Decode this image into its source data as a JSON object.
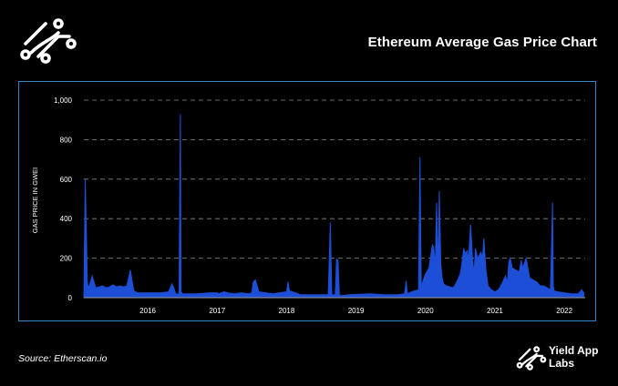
{
  "header": {
    "title": "Ethereum Average Gas Price Chart"
  },
  "footer": {
    "source": "Source: Etherscan.io",
    "brand_line1": "Yield App",
    "brand_line2": "Labs"
  },
  "colors": {
    "background": "#000000",
    "frame": "#2f86c8",
    "series": "#1d4fd6",
    "grid": "#8a8a8a",
    "text": "#ffffff"
  },
  "chart_data": {
    "type": "area",
    "title": "Ethereum Average Gas Price Chart",
    "ylabel": "GAS PRICE IN GWEI",
    "xlabel": "",
    "ylim": [
      0,
      1000
    ],
    "xlim": [
      2015.58,
      2022.8
    ],
    "yticks": [
      0,
      200,
      400,
      600,
      800,
      1000
    ],
    "ytick_labels": [
      "0",
      "200",
      "400",
      "600",
      "800",
      "1,000"
    ],
    "xticks": [
      2016,
      2017,
      2018,
      2019,
      2020,
      2021,
      2022
    ],
    "xtick_labels": [
      "2016",
      "2017",
      "2018",
      "2019",
      "2020",
      "2021",
      "2022"
    ],
    "grid": "horizontal dashed",
    "legend": "none",
    "series": [
      {
        "x": [
          2015.58,
          2015.6,
          2015.62,
          2015.63,
          2015.64,
          2015.66,
          2015.7,
          2015.75,
          2015.8,
          2015.85,
          2015.9,
          2015.95,
          2016.0,
          2016.05,
          2016.1,
          2016.15,
          2016.2,
          2016.25,
          2016.28,
          2016.3,
          2016.35,
          2016.5,
          2016.7,
          2016.8,
          2016.85,
          2016.88,
          2016.9,
          2016.95,
          2016.97,
          2016.98,
          2016.99,
          2017.0,
          2017.2,
          2017.4,
          2017.5,
          2017.52,
          2017.6,
          2017.65,
          2017.75,
          2017.85,
          2017.95,
          2018.0,
          2018.02,
          2018.05,
          2018.1,
          2018.3,
          2018.5,
          2018.52,
          2018.54,
          2018.7,
          2019.0,
          2019.1,
          2019.13,
          2019.15,
          2019.2,
          2019.22,
          2019.24,
          2019.26,
          2019.28,
          2019.4,
          2019.7,
          2019.9,
          2020.0,
          2020.1,
          2020.2,
          2020.22,
          2020.24,
          2020.3,
          2020.4,
          2020.42,
          2020.44,
          2020.46,
          2020.5,
          2020.55,
          2020.6,
          2020.62,
          2020.64,
          2020.66,
          2020.68,
          2020.7,
          2020.72,
          2020.74,
          2020.76,
          2020.8,
          2020.9,
          2020.95,
          2021.0,
          2021.02,
          2021.05,
          2021.08,
          2021.1,
          2021.12,
          2021.15,
          2021.18,
          2021.2,
          2021.22,
          2021.25,
          2021.3,
          2021.32,
          2021.34,
          2021.37,
          2021.4,
          2021.45,
          2021.5,
          2021.55,
          2021.6,
          2021.65,
          2021.68,
          2021.7,
          2021.72,
          2021.75,
          2021.8,
          2021.85,
          2021.88,
          2021.9,
          2021.95,
          2022.0,
          2022.05,
          2022.1,
          2022.15,
          2022.2,
          2022.25,
          2022.3,
          2022.33,
          2022.34,
          2022.35,
          2022.4,
          2022.5,
          2022.6,
          2022.7,
          2022.75,
          2022.78
        ],
        "y": [
          0,
          600,
          270,
          80,
          55,
          60,
          110,
          50,
          55,
          60,
          50,
          55,
          65,
          55,
          60,
          55,
          60,
          140,
          75,
          35,
          25,
          25,
          25,
          30,
          70,
          45,
          20,
          20,
          930,
          30,
          25,
          20,
          20,
          25,
          25,
          20,
          30,
          25,
          20,
          25,
          20,
          25,
          80,
          90,
          30,
          20,
          30,
          80,
          35,
          15,
          15,
          15,
          380,
          15,
          15,
          195,
          190,
          15,
          10,
          15,
          20,
          15,
          15,
          15,
          20,
          85,
          20,
          30,
          40,
          710,
          50,
          80,
          120,
          150,
          270,
          250,
          160,
          480,
          140,
          540,
          170,
          100,
          70,
          60,
          50,
          80,
          120,
          160,
          250,
          220,
          240,
          190,
          370,
          180,
          130,
          250,
          200,
          230,
          200,
          300,
          140,
          60,
          40,
          30,
          40,
          70,
          110,
          80,
          180,
          200,
          150,
          140,
          130,
          190,
          150,
          200,
          100,
          90,
          80,
          60,
          60,
          50,
          40,
          480,
          60,
          35,
          30,
          25,
          20,
          20,
          40,
          25
        ]
      }
    ]
  }
}
